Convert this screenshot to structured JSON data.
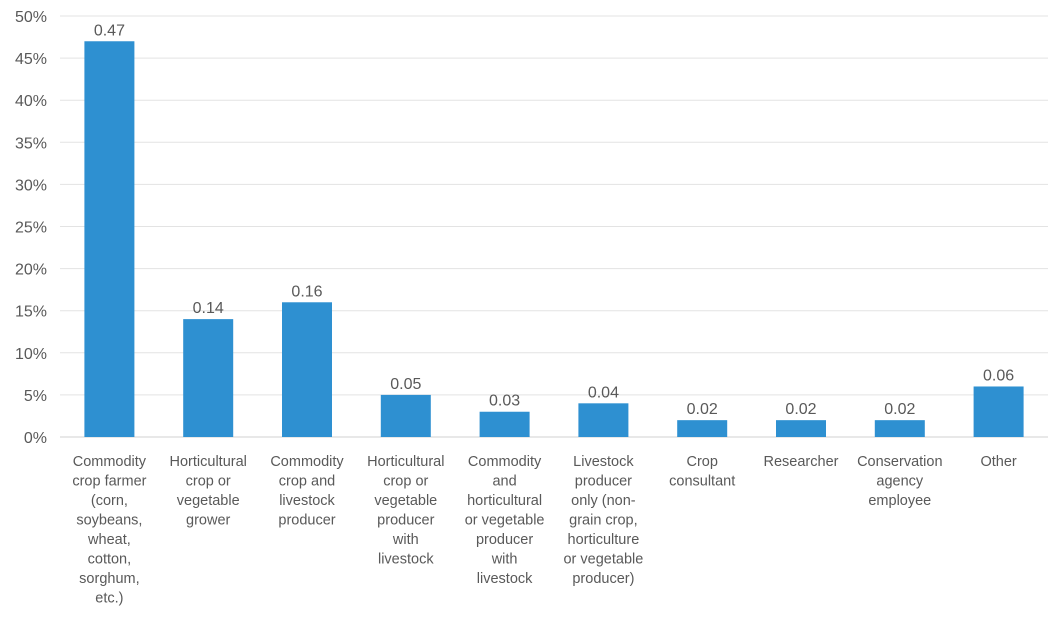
{
  "chart_data": {
    "type": "bar",
    "title": "",
    "xlabel": "",
    "ylabel": "",
    "ylim": [
      0,
      0.5
    ],
    "yticks": [
      {
        "value": 0.0,
        "label": "0%"
      },
      {
        "value": 0.05,
        "label": "5%"
      },
      {
        "value": 0.1,
        "label": "10%"
      },
      {
        "value": 0.15,
        "label": "15%"
      },
      {
        "value": 0.2,
        "label": "20%"
      },
      {
        "value": 0.25,
        "label": "25%"
      },
      {
        "value": 0.3,
        "label": "30%"
      },
      {
        "value": 0.35,
        "label": "35%"
      },
      {
        "value": 0.4,
        "label": "40%"
      },
      {
        "value": 0.45,
        "label": "45%"
      },
      {
        "value": 0.5,
        "label": "50%"
      }
    ],
    "grid": true,
    "legend": "none",
    "colors": {
      "bar": "#2e90d1",
      "grid": "#e3e3e3",
      "text": "#595959"
    },
    "categories": [
      [
        "Commodity",
        "crop farmer",
        "(corn,",
        "soybeans,",
        "wheat,",
        "cotton,",
        "sorghum,",
        "etc.)"
      ],
      [
        "Horticultural",
        "crop or",
        "vegetable",
        "grower"
      ],
      [
        "Commodity",
        "crop and",
        "livestock",
        "producer"
      ],
      [
        "Horticultural",
        "crop or",
        "vegetable",
        "producer",
        "with",
        "livestock"
      ],
      [
        "Commodity",
        "and",
        "horticultural",
        "or vegetable",
        "producer",
        "with",
        "livestock"
      ],
      [
        "Livestock",
        "producer",
        "only (non-",
        "grain crop,",
        "horticulture",
        "or vegetable",
        "producer)"
      ],
      [
        "Crop",
        "consultant"
      ],
      [
        "Researcher"
      ],
      [
        "Conservation",
        "agency",
        "employee"
      ],
      [
        "Other"
      ]
    ],
    "values": [
      0.47,
      0.14,
      0.16,
      0.05,
      0.03,
      0.04,
      0.02,
      0.02,
      0.02,
      0.06
    ],
    "data_labels": [
      "0.47",
      "0.14",
      "0.16",
      "0.05",
      "0.03",
      "0.04",
      "0.02",
      "0.02",
      "0.02",
      "0.06"
    ]
  }
}
